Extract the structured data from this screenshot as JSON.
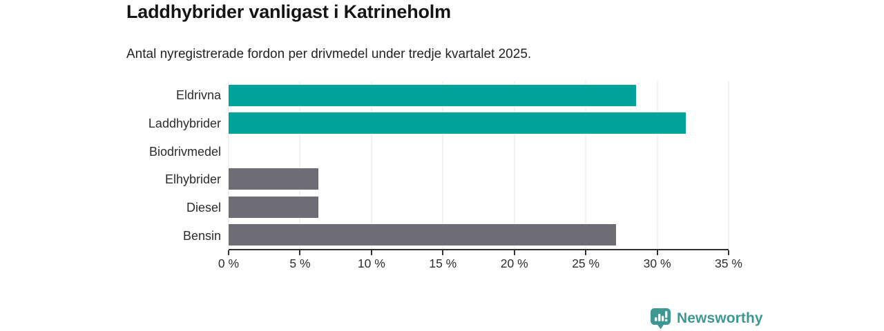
{
  "header": {
    "title": "Laddhybrider vanligast i Katrineholm",
    "subtitle": "Antal nyregistrerade fordon per drivmedel under tredje kvartalet 2025."
  },
  "chart_data": {
    "type": "bar",
    "orientation": "horizontal",
    "title": "Laddhybrider vanligast i Katrineholm",
    "subtitle": "Antal nyregistrerade fordon per drivmedel under tredje kvartalet 2025.",
    "categories": [
      "Eldrivna",
      "Laddhybrider",
      "Biodrivmedel",
      "Elhybrider",
      "Diesel",
      "Bensin"
    ],
    "values": [
      28.5,
      32,
      0,
      6.3,
      6.3,
      27.1
    ],
    "unit": "%",
    "xlim": [
      0,
      35
    ],
    "xticks": [
      0,
      5,
      10,
      15,
      20,
      25,
      30,
      35
    ],
    "xtick_labels": [
      "0 %",
      "5 %",
      "10 %",
      "15 %",
      "20 %",
      "25 %",
      "30 %",
      "35 %"
    ],
    "grid": true,
    "legend": false,
    "bar_colors": [
      "#00a49b",
      "#00a49b",
      "#6d6d73",
      "#6d6d73",
      "#6d6d73",
      "#6d6d73"
    ],
    "highlight_color": "#00a49b",
    "default_color": "#6d6d73",
    "gridline_color": "#e6e6e6",
    "axis_color": "#303030"
  },
  "footer": {
    "brand": "Newsworthy",
    "brand_color": "#3d9793",
    "logo_icon": "newsworthy-bar-chart-bubble-icon"
  }
}
